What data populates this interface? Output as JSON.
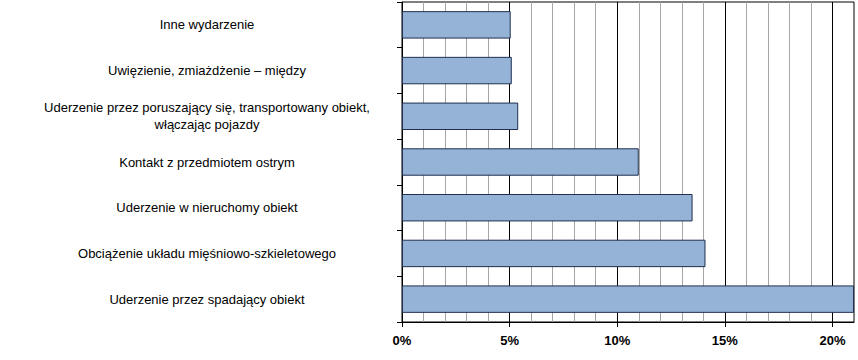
{
  "chart_data": {
    "type": "bar",
    "orientation": "horizontal",
    "categories": [
      "Uderzenie przez spadający obiekt",
      "Obciążenie układu mięśniowo-szkieletowego",
      "Uderzenie w nieruchomy obiekt",
      "Kontakt z przedmiotem ostrym",
      "Uderzenie przez poruszający się, transportowany obiekt,\nwłączając pojazdy",
      "Uwięzienie, zmiażdżenie – między",
      "Inne wydarzenie"
    ],
    "values": [
      21,
      14.1,
      13.5,
      11.0,
      5.4,
      5.1,
      5.05
    ],
    "color": "#95b3d7",
    "xlim": [
      0,
      21
    ],
    "xticks": [
      {
        "value": 0,
        "label": "0%"
      },
      {
        "value": 5,
        "label": "5%"
      },
      {
        "value": 10,
        "label": "10%"
      },
      {
        "value": 15,
        "label": "15%"
      },
      {
        "value": 20,
        "label": "20%"
      }
    ],
    "grid": true
  }
}
